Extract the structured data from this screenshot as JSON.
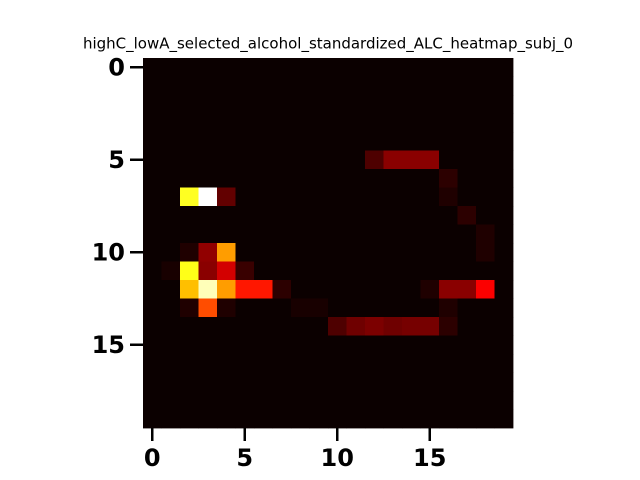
{
  "chart_data": {
    "type": "heatmap",
    "title": "highC_lowA_selected_alcohol_standardized_ALC_heatmap_subj_0",
    "colormap": "hot",
    "xlim": [
      -0.5,
      19.5
    ],
    "ylim": [
      19.5,
      -0.5
    ],
    "xticks": [
      0,
      5,
      10,
      15
    ],
    "yticks": [
      0,
      5,
      10,
      15
    ],
    "values": [
      [
        0,
        0,
        0,
        0,
        0,
        0,
        0,
        0,
        0,
        0,
        0,
        0,
        0,
        0,
        0,
        0,
        0,
        0,
        0,
        0
      ],
      [
        0,
        0,
        0,
        0,
        0,
        0,
        0,
        0,
        0,
        0,
        0,
        0,
        0,
        0,
        0,
        0,
        0,
        0,
        0,
        0
      ],
      [
        0,
        0,
        0,
        0,
        0,
        0,
        0,
        0,
        0,
        0,
        0,
        0,
        0,
        0,
        0,
        0,
        0,
        0,
        0,
        0
      ],
      [
        0,
        0,
        0,
        0,
        0,
        0,
        0,
        0,
        0,
        0,
        0,
        0,
        0,
        0,
        0,
        0,
        0,
        0,
        0,
        0
      ],
      [
        0,
        0,
        0,
        0,
        0,
        0,
        0,
        0,
        0,
        0,
        0,
        0,
        0,
        0,
        0,
        0,
        0,
        0,
        0,
        0
      ],
      [
        0,
        0,
        0,
        0,
        0,
        0,
        0,
        0,
        0,
        0,
        0,
        0,
        0.1,
        0.19,
        0.19,
        0.19,
        0,
        0,
        0,
        0
      ],
      [
        0,
        0,
        0,
        0,
        0,
        0,
        0,
        0,
        0,
        0,
        0,
        0,
        0,
        0,
        0,
        0,
        0.05,
        0,
        0,
        0
      ],
      [
        0,
        0,
        0.78,
        1,
        0.13,
        0,
        0,
        0,
        0,
        0,
        0,
        0,
        0,
        0,
        0,
        0,
        0.03,
        0,
        0,
        0
      ],
      [
        0,
        0,
        0,
        0,
        0,
        0,
        0,
        0,
        0,
        0,
        0,
        0,
        0,
        0,
        0,
        0,
        0,
        0.05,
        0,
        0
      ],
      [
        0,
        0,
        0,
        0,
        0,
        0,
        0,
        0,
        0,
        0,
        0,
        0,
        0,
        0,
        0,
        0,
        0,
        0,
        0.03,
        0
      ],
      [
        0,
        0,
        0.03,
        0.2,
        0.6,
        0,
        0,
        0,
        0,
        0,
        0,
        0,
        0,
        0,
        0,
        0,
        0,
        0,
        0.03,
        0
      ],
      [
        0,
        0.02,
        0.77,
        0.19,
        0.3,
        0.07,
        0,
        0,
        0,
        0,
        0,
        0,
        0,
        0,
        0,
        0,
        0,
        0,
        0,
        0
      ],
      [
        0,
        0,
        0.65,
        0.93,
        0.6,
        0.4,
        0.4,
        0.05,
        0,
        0,
        0,
        0,
        0,
        0,
        0,
        0.03,
        0.19,
        0.19,
        0.36,
        0
      ],
      [
        0,
        0,
        0.03,
        0.48,
        0.03,
        0,
        0,
        0,
        0.02,
        0.02,
        0,
        0,
        0,
        0,
        0,
        0,
        0.03,
        0,
        0,
        0
      ],
      [
        0,
        0,
        0,
        0,
        0,
        0,
        0,
        0,
        0,
        0,
        0.1,
        0.15,
        0.17,
        0.15,
        0.16,
        0.16,
        0.05,
        0,
        0,
        0
      ],
      [
        0,
        0,
        0,
        0,
        0,
        0,
        0,
        0,
        0,
        0,
        0,
        0,
        0,
        0,
        0,
        0,
        0,
        0,
        0,
        0
      ],
      [
        0,
        0,
        0,
        0,
        0,
        0,
        0,
        0,
        0,
        0,
        0,
        0,
        0,
        0,
        0,
        0,
        0,
        0,
        0,
        0
      ],
      [
        0,
        0,
        0,
        0,
        0,
        0,
        0,
        0,
        0,
        0,
        0,
        0,
        0,
        0,
        0,
        0,
        0,
        0,
        0,
        0
      ],
      [
        0,
        0,
        0,
        0,
        0,
        0,
        0,
        0,
        0,
        0,
        0,
        0,
        0,
        0,
        0,
        0,
        0,
        0,
        0,
        0
      ],
      [
        0,
        0,
        0,
        0,
        0,
        0,
        0,
        0,
        0,
        0,
        0,
        0,
        0,
        0,
        0,
        0,
        0,
        0,
        0,
        0
      ]
    ]
  }
}
